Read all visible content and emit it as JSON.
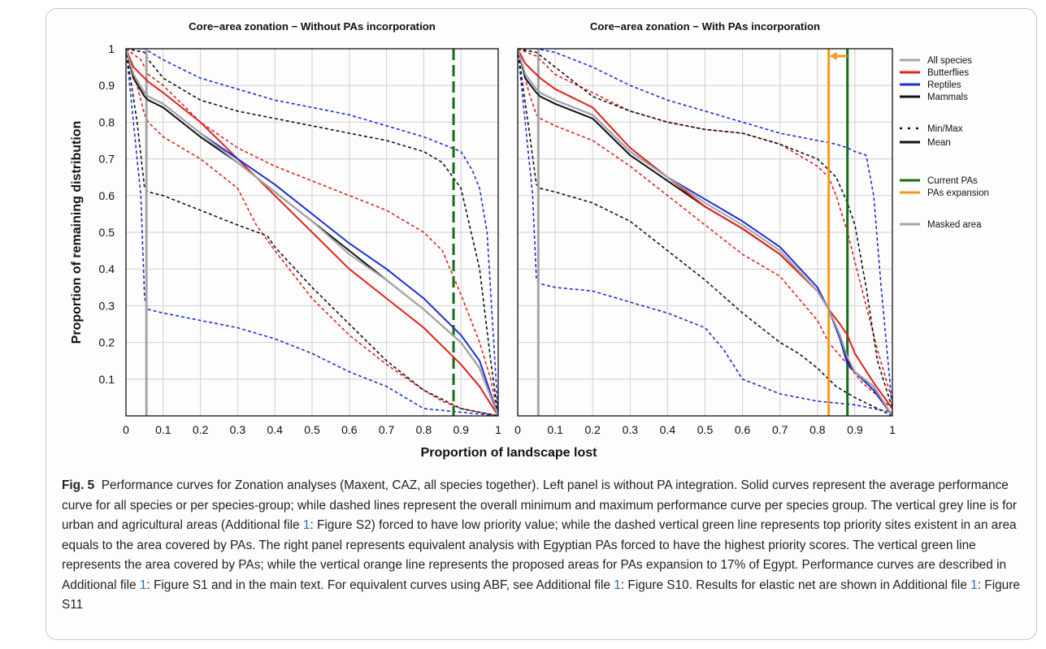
{
  "chart_data": [
    {
      "type": "line",
      "title": "Core−area zonation − Without PAs incorporation",
      "xlabel": "Proportion of landscape lost",
      "ylabel": "Proportion of remaining distribution",
      "xlim": [
        0,
        1
      ],
      "ylim": [
        0,
        1
      ],
      "xticks": [
        "0",
        "0.1",
        "0.2",
        "0.3",
        "0.4",
        "0.5",
        "0.6",
        "0.7",
        "0.8",
        "0.9",
        "1"
      ],
      "yticks": [
        "0.1",
        "0.2",
        "0.3",
        "0.4",
        "0.5",
        "0.6",
        "0.7",
        "0.8",
        "0.9",
        "1"
      ],
      "grid": true,
      "vlines": [
        {
          "name": "Masked area",
          "x": 0.055,
          "color": "#a6a6a6",
          "style": "solid"
        },
        {
          "name": "Current PAs",
          "x": 0.88,
          "color": "#1a6b1a",
          "style": "dashed"
        }
      ],
      "series": [
        {
          "name": "All species",
          "stat": "Mean",
          "color": "#a6a6a6",
          "style": "solid",
          "x": [
            0,
            0.02,
            0.05,
            0.06,
            0.1,
            0.2,
            0.3,
            0.4,
            0.5,
            0.6,
            0.7,
            0.8,
            0.9,
            0.95,
            1
          ],
          "y": [
            1,
            0.93,
            0.88,
            0.87,
            0.85,
            0.77,
            0.69,
            0.61,
            0.53,
            0.44,
            0.37,
            0.29,
            0.2,
            0.13,
            0
          ]
        },
        {
          "name": "Butterflies",
          "stat": "Mean",
          "color": "#e0231c",
          "style": "solid",
          "x": [
            0,
            0.02,
            0.05,
            0.06,
            0.1,
            0.2,
            0.3,
            0.4,
            0.5,
            0.6,
            0.7,
            0.8,
            0.9,
            0.95,
            1
          ],
          "y": [
            1,
            0.95,
            0.92,
            0.91,
            0.88,
            0.8,
            0.7,
            0.6,
            0.5,
            0.4,
            0.32,
            0.24,
            0.14,
            0.08,
            0
          ]
        },
        {
          "name": "Reptiles",
          "stat": "Mean",
          "color": "#1c2fd6",
          "style": "solid",
          "x": [
            0,
            0.02,
            0.05,
            0.06,
            0.1,
            0.2,
            0.3,
            0.4,
            0.5,
            0.6,
            0.7,
            0.8,
            0.9,
            0.95,
            1
          ],
          "y": [
            1,
            0.93,
            0.88,
            0.87,
            0.85,
            0.77,
            0.7,
            0.63,
            0.55,
            0.47,
            0.4,
            0.32,
            0.22,
            0.15,
            0
          ]
        },
        {
          "name": "Mammals",
          "stat": "Mean",
          "color": "#111111",
          "style": "solid",
          "x": [
            0,
            0.02,
            0.05,
            0.06,
            0.1,
            0.2,
            0.3,
            0.4,
            0.5,
            0.6,
            0.7,
            0.8,
            0.9,
            0.95,
            1
          ],
          "y": [
            1,
            0.92,
            0.87,
            0.86,
            0.84,
            0.76,
            0.69,
            0.61,
            0.53,
            0.45,
            0.37,
            0.29,
            0.2,
            0.13,
            0
          ]
        },
        {
          "name": "Butterflies",
          "stat": "Max",
          "color": "#e0231c",
          "style": "dashed",
          "x": [
            0,
            0.04,
            0.06,
            0.1,
            0.2,
            0.3,
            0.4,
            0.5,
            0.6,
            0.7,
            0.8,
            0.85,
            0.9,
            0.95,
            0.98,
            1
          ],
          "y": [
            1,
            0.97,
            0.93,
            0.9,
            0.8,
            0.73,
            0.68,
            0.64,
            0.6,
            0.56,
            0.5,
            0.45,
            0.33,
            0.2,
            0.1,
            0
          ]
        },
        {
          "name": "Butterflies",
          "stat": "Min",
          "color": "#e0231c",
          "style": "dashed",
          "x": [
            0,
            0.03,
            0.05,
            0.06,
            0.1,
            0.2,
            0.3,
            0.35,
            0.4,
            0.5,
            0.6,
            0.7,
            0.8,
            0.85,
            0.9,
            1
          ],
          "y": [
            1,
            0.9,
            0.82,
            0.8,
            0.76,
            0.7,
            0.62,
            0.52,
            0.45,
            0.32,
            0.22,
            0.14,
            0.07,
            0.04,
            0.02,
            0
          ]
        },
        {
          "name": "Reptiles",
          "stat": "Max",
          "color": "#1c2fd6",
          "style": "dashed",
          "x": [
            0,
            0.05,
            0.1,
            0.2,
            0.3,
            0.4,
            0.5,
            0.6,
            0.7,
            0.8,
            0.85,
            0.9,
            0.93,
            0.95,
            0.97,
            1
          ],
          "y": [
            1,
            1,
            0.97,
            0.92,
            0.89,
            0.86,
            0.84,
            0.82,
            0.79,
            0.76,
            0.74,
            0.72,
            0.67,
            0.62,
            0.5,
            0
          ]
        },
        {
          "name": "Reptiles",
          "stat": "Min",
          "color": "#1c2fd6",
          "style": "dashed",
          "x": [
            0,
            0.04,
            0.05,
            0.06,
            0.1,
            0.2,
            0.3,
            0.4,
            0.5,
            0.6,
            0.7,
            0.75,
            0.8,
            0.9,
            1
          ],
          "y": [
            1,
            0.6,
            0.32,
            0.29,
            0.28,
            0.26,
            0.24,
            0.21,
            0.17,
            0.12,
            0.08,
            0.05,
            0.02,
            0.01,
            0
          ]
        },
        {
          "name": "Mammals",
          "stat": "Max",
          "color": "#111111",
          "style": "dashed",
          "x": [
            0,
            0.05,
            0.06,
            0.1,
            0.2,
            0.3,
            0.4,
            0.5,
            0.6,
            0.7,
            0.8,
            0.85,
            0.9,
            0.95,
            0.98,
            1
          ],
          "y": [
            1,
            0.99,
            0.97,
            0.92,
            0.86,
            0.83,
            0.81,
            0.79,
            0.77,
            0.75,
            0.72,
            0.69,
            0.62,
            0.4,
            0.15,
            0
          ]
        },
        {
          "name": "Mammals",
          "stat": "Min",
          "color": "#111111",
          "style": "dashed",
          "x": [
            0,
            0.03,
            0.05,
            0.06,
            0.1,
            0.2,
            0.3,
            0.38,
            0.4,
            0.5,
            0.6,
            0.7,
            0.8,
            0.9,
            1
          ],
          "y": [
            1,
            0.8,
            0.62,
            0.61,
            0.6,
            0.56,
            0.52,
            0.49,
            0.46,
            0.35,
            0.25,
            0.15,
            0.07,
            0.02,
            0
          ]
        }
      ]
    },
    {
      "type": "line",
      "title": "Core−area zonation − With PAs incorporation",
      "xlabel": "Proportion of landscape lost",
      "ylabel": "Proportion of remaining distribution",
      "xlim": [
        0,
        1
      ],
      "ylim": [
        0,
        1
      ],
      "xticks": [
        "0",
        "0.1",
        "0.2",
        "0.3",
        "0.4",
        "0.5",
        "0.6",
        "0.7",
        "0.8",
        "0.9",
        "1"
      ],
      "grid": true,
      "vlines": [
        {
          "name": "Masked area",
          "x": 0.055,
          "color": "#a6a6a6",
          "style": "solid"
        },
        {
          "name": "PAs expansion",
          "x": 0.83,
          "color": "#f39a1e",
          "style": "solid"
        },
        {
          "name": "Current PAs",
          "x": 0.88,
          "color": "#1a6b1a",
          "style": "solid"
        }
      ],
      "arrow": {
        "from": 0.88,
        "to": 0.83,
        "y": 0.98,
        "color": "#f39a1e"
      },
      "series": [
        {
          "name": "All species",
          "stat": "Mean",
          "color": "#a6a6a6",
          "style": "solid",
          "x": [
            0,
            0.02,
            0.05,
            0.06,
            0.1,
            0.2,
            0.3,
            0.4,
            0.5,
            0.6,
            0.7,
            0.8,
            0.83,
            0.86,
            0.88,
            0.9,
            0.95,
            1
          ],
          "y": [
            1,
            0.93,
            0.89,
            0.88,
            0.86,
            0.82,
            0.72,
            0.65,
            0.58,
            0.52,
            0.45,
            0.34,
            0.29,
            0.22,
            0.16,
            0.12,
            0.08,
            0
          ]
        },
        {
          "name": "Butterflies",
          "stat": "Mean",
          "color": "#e0231c",
          "style": "solid",
          "x": [
            0,
            0.02,
            0.05,
            0.06,
            0.1,
            0.2,
            0.3,
            0.4,
            0.5,
            0.6,
            0.7,
            0.8,
            0.83,
            0.86,
            0.88,
            0.9,
            0.95,
            1
          ],
          "y": [
            1,
            0.96,
            0.93,
            0.92,
            0.89,
            0.84,
            0.73,
            0.65,
            0.57,
            0.51,
            0.44,
            0.34,
            0.29,
            0.25,
            0.22,
            0.17,
            0.09,
            0.02
          ]
        },
        {
          "name": "Reptiles",
          "stat": "Mean",
          "color": "#1c2fd6",
          "style": "solid",
          "x": [
            0,
            0.02,
            0.05,
            0.06,
            0.1,
            0.2,
            0.3,
            0.4,
            0.5,
            0.6,
            0.7,
            0.8,
            0.83,
            0.86,
            0.88,
            0.9,
            0.95,
            1
          ],
          "y": [
            1,
            0.93,
            0.89,
            0.88,
            0.86,
            0.82,
            0.72,
            0.65,
            0.59,
            0.53,
            0.46,
            0.35,
            0.29,
            0.21,
            0.14,
            0.12,
            0.07,
            0
          ]
        },
        {
          "name": "Mammals",
          "stat": "Mean",
          "color": "#111111",
          "style": "solid",
          "x": [
            0,
            0.02,
            0.05,
            0.06,
            0.1,
            0.2,
            0.3,
            0.4,
            0.5,
            0.6,
            0.7,
            0.8,
            0.83,
            0.86,
            0.88,
            0.9,
            0.95,
            1
          ],
          "y": [
            1,
            0.92,
            0.88,
            0.87,
            0.85,
            0.81,
            0.71,
            0.64,
            0.57,
            0.51,
            0.44,
            0.34,
            0.29,
            0.22,
            0.15,
            0.12,
            0.08,
            0
          ]
        },
        {
          "name": "Butterflies",
          "stat": "Max",
          "color": "#e0231c",
          "style": "dashed",
          "x": [
            0,
            0.05,
            0.1,
            0.2,
            0.3,
            0.4,
            0.5,
            0.6,
            0.7,
            0.8,
            0.83,
            0.85,
            0.88,
            0.9,
            0.93,
            0.96,
            1
          ],
          "y": [
            1,
            0.98,
            0.93,
            0.88,
            0.83,
            0.8,
            0.78,
            0.77,
            0.74,
            0.68,
            0.65,
            0.6,
            0.5,
            0.42,
            0.3,
            0.18,
            0.04
          ]
        },
        {
          "name": "Butterflies",
          "stat": "Min",
          "color": "#e0231c",
          "style": "dashed",
          "x": [
            0,
            0.03,
            0.05,
            0.06,
            0.1,
            0.2,
            0.3,
            0.4,
            0.5,
            0.6,
            0.7,
            0.75,
            0.8,
            0.83,
            0.88,
            0.92,
            1
          ],
          "y": [
            1,
            0.88,
            0.82,
            0.81,
            0.79,
            0.75,
            0.68,
            0.6,
            0.52,
            0.44,
            0.38,
            0.32,
            0.26,
            0.2,
            0.14,
            0.09,
            0.02
          ]
        },
        {
          "name": "Reptiles",
          "stat": "Max",
          "color": "#1c2fd6",
          "style": "dashed",
          "x": [
            0,
            0.05,
            0.1,
            0.2,
            0.3,
            0.4,
            0.5,
            0.6,
            0.7,
            0.8,
            0.85,
            0.88,
            0.9,
            0.93,
            0.95,
            0.97,
            1
          ],
          "y": [
            1,
            1,
            0.99,
            0.95,
            0.9,
            0.86,
            0.83,
            0.8,
            0.77,
            0.75,
            0.74,
            0.73,
            0.72,
            0.71,
            0.6,
            0.35,
            0.02
          ]
        },
        {
          "name": "Reptiles",
          "stat": "Min",
          "color": "#1c2fd6",
          "style": "dashed",
          "x": [
            0,
            0.04,
            0.05,
            0.06,
            0.1,
            0.2,
            0.3,
            0.4,
            0.5,
            0.55,
            0.6,
            0.7,
            0.8,
            0.9,
            1
          ],
          "y": [
            1,
            0.6,
            0.37,
            0.36,
            0.35,
            0.34,
            0.31,
            0.28,
            0.24,
            0.18,
            0.1,
            0.06,
            0.04,
            0.03,
            0.01
          ]
        },
        {
          "name": "Mammals",
          "stat": "Max",
          "color": "#111111",
          "style": "dashed",
          "x": [
            0,
            0.05,
            0.1,
            0.2,
            0.3,
            0.4,
            0.5,
            0.6,
            0.7,
            0.8,
            0.85,
            0.88,
            0.9,
            0.93,
            0.96,
            1
          ],
          "y": [
            1,
            0.99,
            0.95,
            0.87,
            0.83,
            0.8,
            0.78,
            0.77,
            0.74,
            0.7,
            0.65,
            0.58,
            0.52,
            0.35,
            0.15,
            0.02
          ]
        },
        {
          "name": "Mammals",
          "stat": "Min",
          "color": "#111111",
          "style": "dashed",
          "x": [
            0,
            0.03,
            0.05,
            0.06,
            0.1,
            0.2,
            0.3,
            0.4,
            0.5,
            0.6,
            0.7,
            0.75,
            0.8,
            0.85,
            0.9,
            1
          ],
          "y": [
            1,
            0.78,
            0.63,
            0.62,
            0.61,
            0.58,
            0.53,
            0.45,
            0.37,
            0.28,
            0.2,
            0.17,
            0.13,
            0.08,
            0.05,
            0
          ]
        }
      ]
    }
  ],
  "legend": {
    "species_groups": [
      {
        "label": "All species",
        "color": "#a6a6a6",
        "style": "solid"
      },
      {
        "label": "Butterflies",
        "color": "#e0231c",
        "style": "solid"
      },
      {
        "label": "Reptiles",
        "color": "#1c2fd6",
        "style": "solid"
      },
      {
        "label": "Mammals",
        "color": "#111111",
        "style": "solid"
      }
    ],
    "statistics": [
      {
        "label": "Min/Max",
        "color": "#111111",
        "style": "dashed"
      },
      {
        "label": "Mean",
        "color": "#111111",
        "style": "solid"
      }
    ],
    "protected_areas": [
      {
        "label": "Current PAs",
        "color": "#1a6b1a",
        "style": "solid"
      },
      {
        "label": "PAs expansion",
        "color": "#f39a1e",
        "style": "solid"
      }
    ],
    "mask": [
      {
        "label": "Masked area",
        "color": "#a6a6a6",
        "style": "solid"
      }
    ]
  },
  "caption": {
    "label": "Fig. 5",
    "text_parts": [
      "Performance curves for Zonation analyses (Maxent, CAZ, all species together). Left panel is without PA integration. Solid curves represent the average performance curve for all species or per species-group; while dashed lines represent the overall minimum and maximum performance curve per species group. The vertical grey line is for urban and agricultural areas (Additional file ",
      "1",
      ": Figure S2) forced to have low priority value; while the dashed vertical green line represents top priority sites existent in an area equals to the area covered by PAs. The right panel represents equivalent analysis with Egyptian PAs forced to have the highest priority scores. The vertical green line represents the area covered by PAs; while the vertical orange line represents the proposed areas for PAs expansion to 17% of Egypt. Performance curves are described in Additional file ",
      "1",
      ": Figure S1 and in the main text. For equivalent curves using ABF, see Additional file ",
      "1",
      ": Figure S10. Results for elastic net are shown in Additional file ",
      "1",
      ": Figure S11"
    ]
  }
}
